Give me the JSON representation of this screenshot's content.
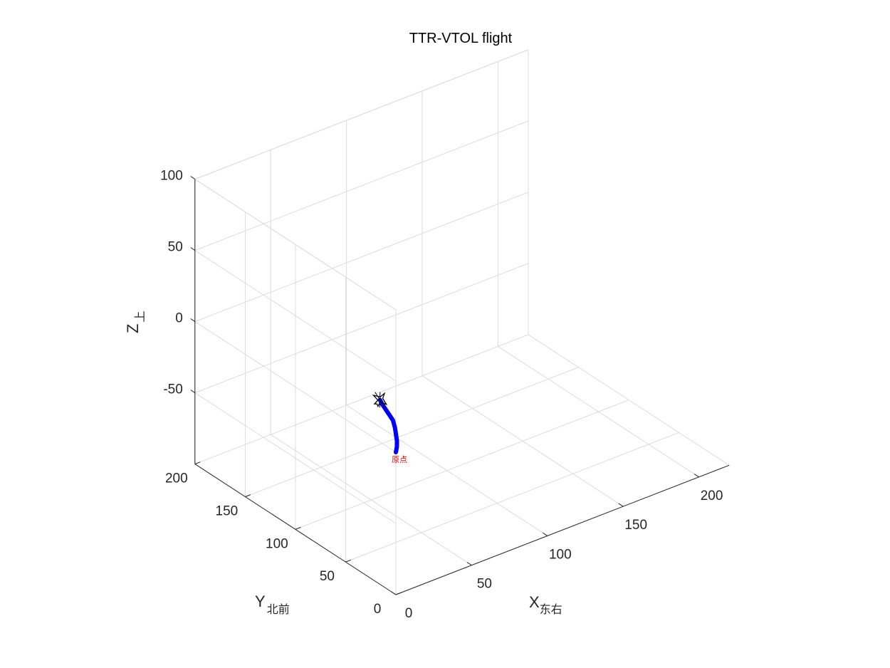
{
  "chart_data": {
    "type": "line",
    "title": "TTR-VTOL flight",
    "xlabel": "X",
    "xlabel_sub": "东右",
    "ylabel": "Y",
    "ylabel_sub": "北前",
    "zlabel": "Z",
    "zlabel_sub": "上",
    "xlim": [
      0,
      220
    ],
    "ylim": [
      0,
      200
    ],
    "zlim": [
      -100,
      100
    ],
    "xticks": [
      0,
      50,
      100,
      150,
      200
    ],
    "yticks": [
      0,
      50,
      100,
      150,
      200
    ],
    "zticks": [
      -50,
      0,
      50,
      100
    ],
    "grid": true,
    "series": [
      {
        "color": "#0000ff",
        "points": [
          [
            0,
            0,
            0
          ],
          [
            2,
            2,
            2
          ],
          [
            4,
            5,
            4
          ],
          [
            6,
            9,
            6
          ],
          [
            8,
            13,
            8
          ],
          [
            10,
            18,
            10
          ],
          [
            11,
            23,
            11
          ],
          [
            12,
            28,
            12
          ],
          [
            13,
            33,
            13
          ],
          [
            14,
            37,
            14
          ]
        ]
      }
    ],
    "annotations": [
      {
        "text": "原点",
        "x": 0,
        "y": 0,
        "z": 0,
        "color": "#ff0000"
      }
    ],
    "marker": {
      "icon": "aircraft-icon",
      "x": 14,
      "y": 37,
      "z": 14,
      "color": "#000000"
    }
  }
}
